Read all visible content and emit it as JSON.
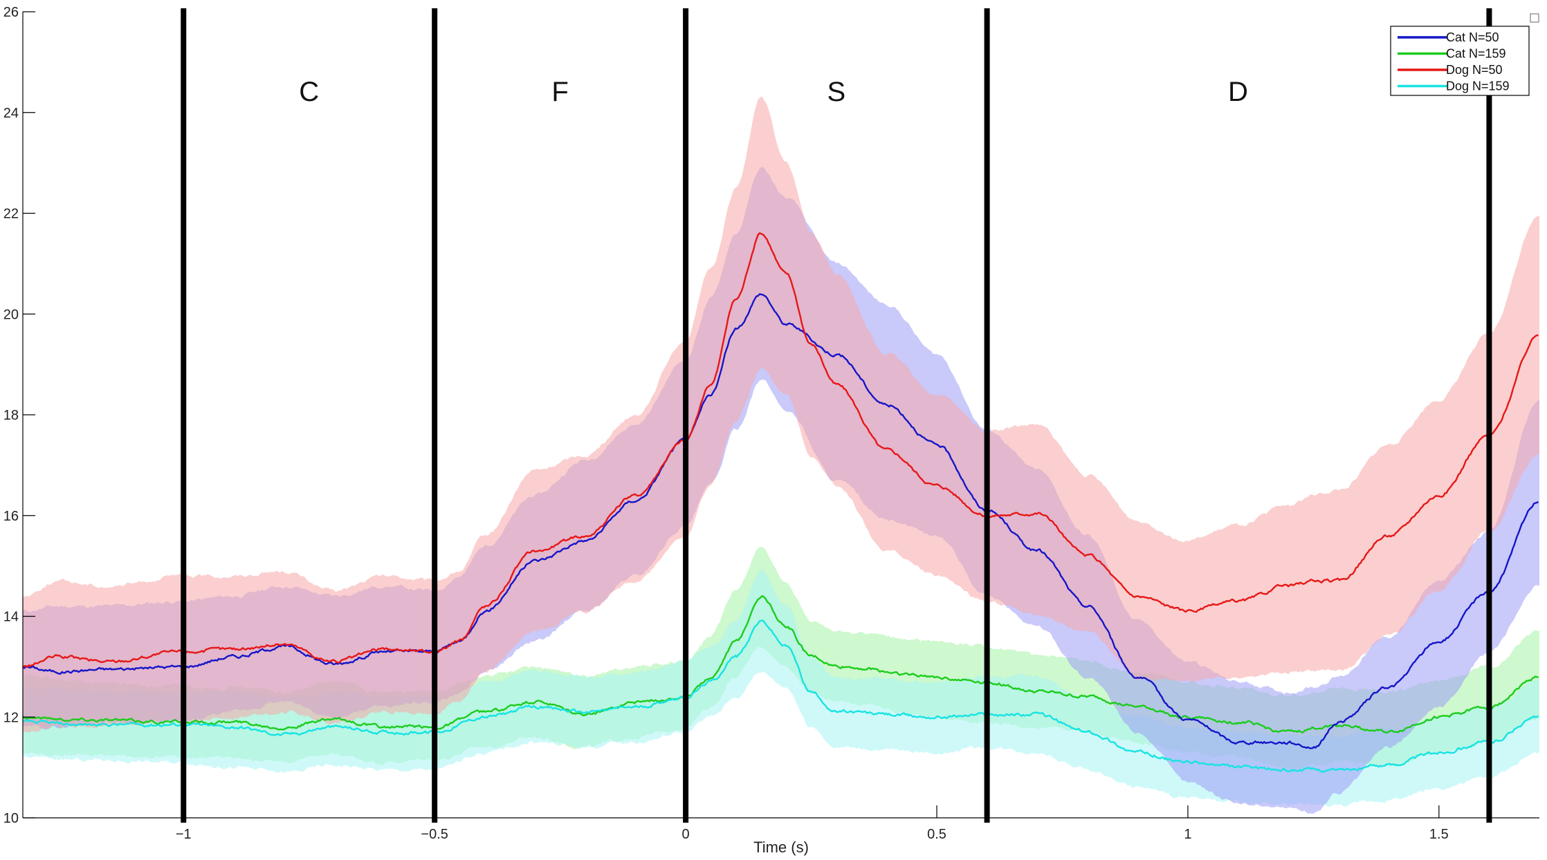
{
  "chart_data": {
    "type": "line",
    "xlabel": "Time (s)",
    "ylabel": "",
    "xlim": [
      -1.32,
      1.7
    ],
    "ylim": [
      10,
      26
    ],
    "x_ticks": [
      -1,
      -0.5,
      0,
      0.5,
      1,
      1.5
    ],
    "x_tick_labels": [
      "−1",
      "−0.5",
      "0",
      "0.5",
      "1",
      "1.5"
    ],
    "y_ticks": [
      10,
      12,
      14,
      16,
      18,
      20,
      22,
      24,
      26
    ],
    "y_tick_labels": [
      "10",
      "12",
      "14",
      "16",
      "18",
      "20",
      "22",
      "24",
      "26"
    ],
    "grid": false,
    "legend_position": "top-right",
    "event_lines": [
      -1,
      -0.5,
      0,
      0.6,
      1.6
    ],
    "phases": [
      {
        "label": "C",
        "x": -0.75
      },
      {
        "label": "F",
        "x": -0.25
      },
      {
        "label": "S",
        "x": 0.3
      },
      {
        "label": "D",
        "x": 1.1
      }
    ],
    "series": [
      {
        "name": "Cat N=50",
        "color": "#1515c8",
        "band_color": "#9d9df5",
        "x": [
          -1.32,
          -1.25,
          -1.15,
          -1.0,
          -0.9,
          -0.8,
          -0.7,
          -0.6,
          -0.5,
          -0.45,
          -0.4,
          -0.3,
          -0.2,
          -0.1,
          0.0,
          0.05,
          0.1,
          0.15,
          0.2,
          0.3,
          0.4,
          0.5,
          0.6,
          0.7,
          0.8,
          0.9,
          1.0,
          1.1,
          1.2,
          1.25,
          1.3,
          1.4,
          1.5,
          1.6,
          1.7
        ],
        "y": [
          13.0,
          12.9,
          12.95,
          13.0,
          13.2,
          13.4,
          13.05,
          13.3,
          13.3,
          13.5,
          14.1,
          15.1,
          15.5,
          16.3,
          17.5,
          18.4,
          19.7,
          20.4,
          19.8,
          19.2,
          18.2,
          17.4,
          16.1,
          15.3,
          14.2,
          12.8,
          11.95,
          11.5,
          11.5,
          11.4,
          11.9,
          12.6,
          13.5,
          14.5,
          16.3
        ],
        "lower": [
          11.8,
          11.8,
          11.9,
          11.9,
          12.1,
          12.3,
          12.0,
          12.2,
          12.3,
          12.5,
          12.9,
          13.5,
          14.1,
          14.8,
          15.8,
          16.6,
          17.7,
          18.7,
          18.1,
          16.7,
          15.9,
          15.6,
          14.4,
          13.8,
          12.8,
          11.7,
          10.7,
          10.3,
          10.2,
          10.1,
          10.5,
          11.4,
          12.2,
          13.3,
          14.6
        ],
        "upper": [
          14.1,
          14.2,
          14.2,
          14.3,
          14.4,
          14.6,
          14.4,
          14.6,
          14.5,
          14.8,
          15.4,
          16.4,
          17.1,
          17.8,
          19.1,
          20.3,
          21.6,
          22.9,
          22.3,
          21.0,
          20.2,
          19.2,
          17.7,
          16.9,
          15.6,
          13.9,
          13.1,
          12.7,
          12.5,
          12.6,
          12.8,
          13.6,
          14.7,
          15.7,
          18.3
        ]
      },
      {
        "name": "Cat N=159",
        "color": "#1ccc1c",
        "band_color": "#a6f2a6",
        "x": [
          -1.32,
          -1.2,
          -1.0,
          -0.9,
          -0.8,
          -0.7,
          -0.6,
          -0.5,
          -0.4,
          -0.3,
          -0.2,
          -0.1,
          0.0,
          0.05,
          0.1,
          0.15,
          0.2,
          0.25,
          0.3,
          0.5,
          0.6,
          0.7,
          0.8,
          0.9,
          1.0,
          1.1,
          1.2,
          1.3,
          1.4,
          1.5,
          1.6,
          1.7
        ],
        "y": [
          12.0,
          11.95,
          11.9,
          11.9,
          11.8,
          11.95,
          11.8,
          11.8,
          12.1,
          12.3,
          12.05,
          12.3,
          12.4,
          12.8,
          13.5,
          14.4,
          13.8,
          13.2,
          13.0,
          12.8,
          12.7,
          12.5,
          12.4,
          12.2,
          12.0,
          11.9,
          11.7,
          11.85,
          11.7,
          12.0,
          12.2,
          12.8
        ],
        "lower": [
          11.3,
          11.25,
          11.2,
          11.2,
          11.1,
          11.25,
          11.1,
          11.15,
          11.4,
          11.6,
          11.4,
          11.6,
          11.8,
          12.2,
          12.8,
          13.4,
          13.0,
          12.5,
          12.3,
          12.0,
          11.9,
          11.8,
          11.7,
          11.5,
          11.3,
          11.2,
          11.0,
          11.1,
          11.0,
          11.3,
          11.5,
          12.0
        ],
        "upper": [
          12.8,
          12.7,
          12.6,
          12.6,
          12.5,
          12.7,
          12.5,
          12.5,
          12.8,
          13.0,
          12.8,
          13.0,
          13.1,
          13.6,
          14.5,
          15.4,
          14.6,
          13.9,
          13.7,
          13.5,
          13.4,
          13.2,
          13.1,
          12.9,
          12.7,
          12.6,
          12.4,
          12.6,
          12.5,
          12.7,
          13.0,
          13.7
        ]
      },
      {
        "name": "Dog N=50",
        "color": "#e61717",
        "band_color": "#f7a8a8",
        "x": [
          -1.32,
          -1.25,
          -1.15,
          -1.0,
          -0.9,
          -0.8,
          -0.7,
          -0.6,
          -0.5,
          -0.45,
          -0.4,
          -0.3,
          -0.2,
          -0.1,
          0.0,
          0.05,
          0.1,
          0.15,
          0.2,
          0.25,
          0.3,
          0.4,
          0.5,
          0.6,
          0.7,
          0.8,
          0.9,
          1.0,
          1.1,
          1.2,
          1.25,
          1.3,
          1.4,
          1.5,
          1.6,
          1.7
        ],
        "y": [
          13.0,
          13.2,
          13.1,
          13.3,
          13.35,
          13.45,
          13.1,
          13.35,
          13.3,
          13.5,
          14.2,
          15.3,
          15.6,
          16.4,
          17.5,
          18.6,
          20.3,
          21.6,
          20.8,
          19.4,
          18.6,
          17.3,
          16.6,
          16.0,
          16.05,
          15.2,
          14.4,
          14.1,
          14.3,
          14.6,
          14.7,
          14.7,
          15.6,
          16.4,
          17.6,
          19.6
        ],
        "lower": [
          11.7,
          11.8,
          11.8,
          11.9,
          12.0,
          12.1,
          11.9,
          12.1,
          12.1,
          12.3,
          12.9,
          13.7,
          14.1,
          14.7,
          15.6,
          16.6,
          17.9,
          18.9,
          18.4,
          17.2,
          16.6,
          15.3,
          14.8,
          14.3,
          14.0,
          13.7,
          12.8,
          12.7,
          12.8,
          12.9,
          12.9,
          12.9,
          13.6,
          14.5,
          15.7,
          17.2
        ],
        "upper": [
          14.4,
          14.7,
          14.6,
          14.8,
          14.8,
          14.9,
          14.5,
          14.8,
          14.7,
          14.9,
          15.6,
          16.9,
          17.2,
          18.0,
          19.5,
          20.9,
          22.5,
          24.3,
          23.0,
          21.6,
          20.8,
          19.2,
          18.4,
          17.7,
          17.8,
          16.8,
          15.9,
          15.5,
          15.8,
          16.2,
          16.4,
          16.5,
          17.4,
          18.3,
          19.6,
          22.0
        ]
      },
      {
        "name": "Dog N=159",
        "color": "#17e3e3",
        "band_color": "#a8f4f4",
        "x": [
          -1.32,
          -1.2,
          -1.0,
          -0.9,
          -0.8,
          -0.7,
          -0.6,
          -0.5,
          -0.4,
          -0.3,
          -0.2,
          -0.1,
          0.0,
          0.05,
          0.1,
          0.15,
          0.2,
          0.25,
          0.3,
          0.5,
          0.6,
          0.7,
          0.8,
          0.9,
          1.0,
          1.1,
          1.2,
          1.3,
          1.4,
          1.5,
          1.6,
          1.7
        ],
        "y": [
          11.9,
          11.85,
          11.85,
          11.8,
          11.65,
          11.8,
          11.7,
          11.7,
          12.0,
          12.2,
          12.1,
          12.2,
          12.4,
          12.7,
          13.2,
          13.9,
          13.4,
          12.5,
          12.1,
          12.0,
          12.05,
          12.05,
          11.7,
          11.3,
          11.1,
          11.0,
          10.95,
          10.95,
          11.05,
          11.3,
          11.5,
          12.0
        ],
        "lower": [
          11.2,
          11.15,
          11.1,
          11.0,
          10.9,
          11.05,
          10.95,
          10.95,
          11.3,
          11.5,
          11.4,
          11.5,
          11.7,
          12.0,
          12.4,
          12.9,
          12.6,
          11.8,
          11.4,
          11.3,
          11.4,
          11.3,
          10.95,
          10.6,
          10.4,
          10.3,
          10.25,
          10.25,
          10.35,
          10.6,
          10.8,
          11.3
        ],
        "upper": [
          12.6,
          12.55,
          12.5,
          12.5,
          12.4,
          12.5,
          12.4,
          12.4,
          12.7,
          12.9,
          12.8,
          12.9,
          13.1,
          13.4,
          13.9,
          14.9,
          14.2,
          13.2,
          12.8,
          12.7,
          12.8,
          12.8,
          12.4,
          12.0,
          11.8,
          11.7,
          11.65,
          11.65,
          11.75,
          12.0,
          12.2,
          12.7
        ]
      }
    ]
  }
}
